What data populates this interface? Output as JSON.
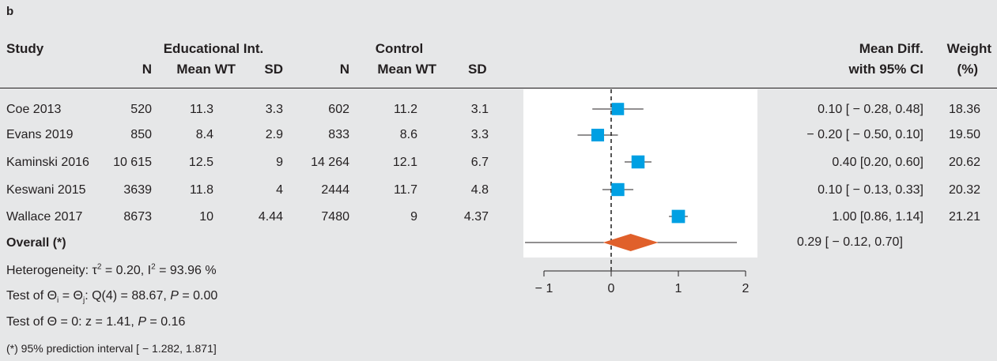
{
  "panel_label": "b",
  "header": {
    "study": "Study",
    "educational": "Educational Int.",
    "control": "Control",
    "n": "N",
    "mean_wt": "Mean WT",
    "sd": "SD",
    "mean_diff_line1": "Mean Diff.",
    "mean_diff_line2": "with 95% CI",
    "weight_line1": "Weight",
    "weight_line2": "(%)"
  },
  "rows": [
    {
      "study": "Coe 2013",
      "n1": "520",
      "mean1": "11.3",
      "sd1": "3.3",
      "n2": "602",
      "mean2": "11.2",
      "sd2": "3.1",
      "ci": "0.10 [ − 0.28, 0.48]",
      "weight": "18.36"
    },
    {
      "study": "Evans 2019",
      "n1": "850",
      "mean1": "8.4",
      "sd1": "2.9",
      "n2": "833",
      "mean2": "8.6",
      "sd2": "3.3",
      "ci": "− 0.20 [ − 0.50, 0.10]",
      "weight": "19.50"
    },
    {
      "study": "Kaminski 2016",
      "n1": "10 615",
      "mean1": "12.5",
      "sd1": "9",
      "n2": "14 264",
      "mean2": "12.1",
      "sd2": "6.7",
      "ci": "0.40 [0.20, 0.60]",
      "weight": "20.62"
    },
    {
      "study": "Keswani 2015",
      "n1": "3639",
      "mean1": "11.8",
      "sd1": "4",
      "n2": "2444",
      "mean2": "11.7",
      "sd2": "4.8",
      "ci": "0.10 [ − 0.13, 0.33]",
      "weight": "20.32"
    },
    {
      "study": "Wallace 2017",
      "n1": "8673",
      "mean1": "10",
      "sd1": "4.44",
      "n2": "7480",
      "mean2": "9",
      "sd2": "4.37",
      "ci": "1.00 [0.86, 1.14]",
      "weight": "21.21"
    }
  ],
  "overall": {
    "label": "Overall (*)",
    "ci": "0.29 [ − 0.12, 0.70]"
  },
  "heterogeneity": {
    "prefix": "Heterogeneity: τ",
    "tau_exp": "2",
    "mid": " = 0.20, I",
    "i_exp": "2",
    "suffix": " = 93.96 %"
  },
  "test_theta_ij": {
    "prefix": "Test of Θ",
    "sub_i": "i",
    "eq": " = Θ",
    "sub_j": "j",
    "mid": ": Q(4) = 88.67, ",
    "p": "P",
    "suffix": " = 0.00"
  },
  "test_theta0": {
    "prefix": "Test of Θ = 0: z = 1.41, ",
    "p": "P",
    "suffix": " = 0.16"
  },
  "prediction_note": "(*) 95% prediction interval [ − 1.282, 1.871]",
  "chart_data": {
    "type": "forest",
    "xlim": [
      -1,
      2
    ],
    "x_ticks": [
      -1,
      0,
      1,
      2
    ],
    "x_tick_labels": [
      "− 1",
      "0",
      "1",
      "2"
    ],
    "reference_line": 0,
    "marker_color": "#00a0e3",
    "diamond_color": "#e0602b",
    "studies": [
      {
        "name": "Coe 2013",
        "estimate": 0.1,
        "lower": -0.28,
        "upper": 0.48,
        "weight": 18.36
      },
      {
        "name": "Evans 2019",
        "estimate": -0.2,
        "lower": -0.5,
        "upper": 0.1,
        "weight": 19.5
      },
      {
        "name": "Kaminski 2016",
        "estimate": 0.4,
        "lower": 0.2,
        "upper": 0.6,
        "weight": 20.62
      },
      {
        "name": "Keswani 2015",
        "estimate": 0.1,
        "lower": -0.13,
        "upper": 0.33,
        "weight": 20.32
      },
      {
        "name": "Wallace 2017",
        "estimate": 1.0,
        "lower": 0.86,
        "upper": 1.14,
        "weight": 21.21
      }
    ],
    "overall": {
      "estimate": 0.29,
      "lower": -0.12,
      "upper": 0.7,
      "prediction_lower": -1.282,
      "prediction_upper": 1.871
    }
  }
}
